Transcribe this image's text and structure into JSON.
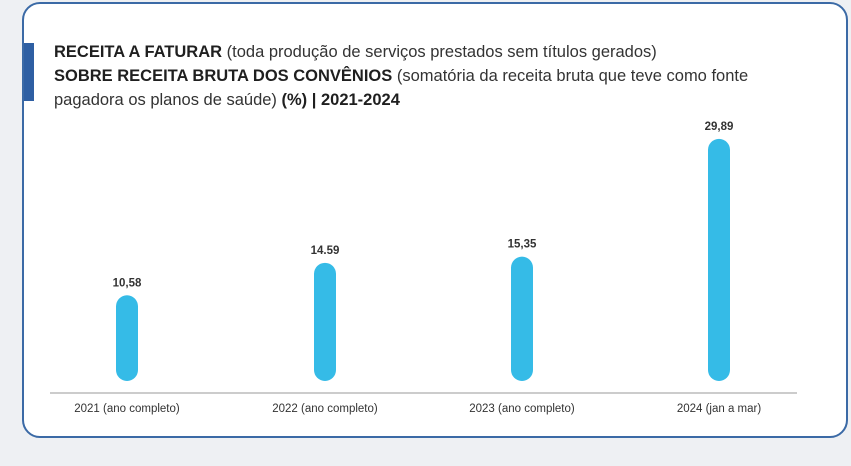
{
  "title": {
    "part1_bold": "RECEITA A FATURAR",
    "part1_normal": " (toda produção de serviços prestados sem títulos gerados)",
    "part2_bold": "SOBRE RECEITA BRUTA DOS CONVÊNIOS",
    "part2_normal": " (somatória da receita bruta que teve como fonte pagadora os planos de saúde) ",
    "part3_bold": "(%) | 2021-2024"
  },
  "colors": {
    "bar": "#35bbe7",
    "border": "#3b6aa6",
    "accent": "#2e5fa3"
  },
  "chart_data": {
    "type": "bar",
    "categories": [
      "2021 (ano completo)",
      "2022 (ano completo)",
      "2023 (ano completo)",
      "2024 (jan a mar)"
    ],
    "values": [
      10.58,
      14.59,
      15.35,
      29.89
    ],
    "data_labels": [
      "10,58",
      "14.59",
      "15,35",
      "29,89"
    ],
    "title": "RECEITA A FATURAR SOBRE RECEITA BRUTA DOS CONVÊNIOS (%) | 2021-2024",
    "xlabel": "",
    "ylabel": "",
    "ylim": [
      0,
      30
    ],
    "grid": false,
    "legend": "none"
  }
}
